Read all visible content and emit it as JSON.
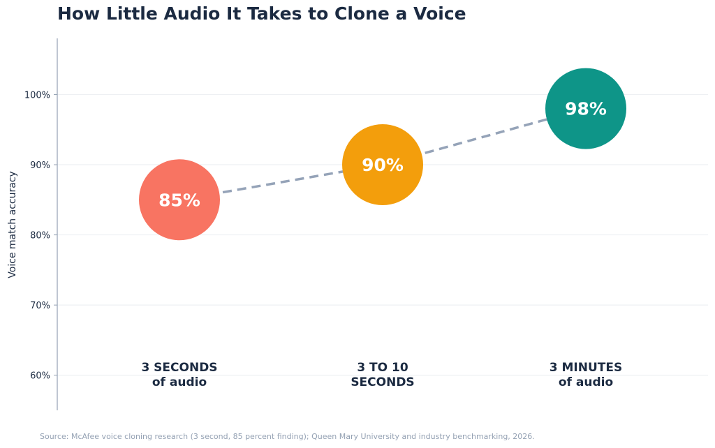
{
  "chart_data": {
    "type": "scatter",
    "title": "How Little Audio It Takes to Clone a Voice",
    "ylabel": "Voice match accuracy",
    "xlabel": "",
    "ylim": [
      55,
      108
    ],
    "y_ticks": [
      60,
      70,
      80,
      90,
      100
    ],
    "y_tick_labels": [
      "60%",
      "70%",
      "80%",
      "90%",
      "100%"
    ],
    "grid": true,
    "legend": "none",
    "connector": "dashed",
    "points": [
      {
        "category_lines": [
          "3 SECONDS",
          "of audio"
        ],
        "value": 85,
        "value_label": "85%",
        "color": "#f87462"
      },
      {
        "category_lines": [
          "3 TO 10",
          "SECONDS"
        ],
        "value": 90,
        "value_label": "90%",
        "color": "#f39e0c"
      },
      {
        "category_lines": [
          "3 MINUTES",
          "of audio"
        ],
        "value": 98,
        "value_label": "98%",
        "color": "#0e9588"
      }
    ],
    "connector_color": "#95a3b8",
    "axis_color": "#94a1b3",
    "grid_color": "#eef0f3",
    "source": "Source: McAfee voice cloning research (3 second, 85 percent finding); Queen Mary University and industry benchmarking, 2026."
  }
}
